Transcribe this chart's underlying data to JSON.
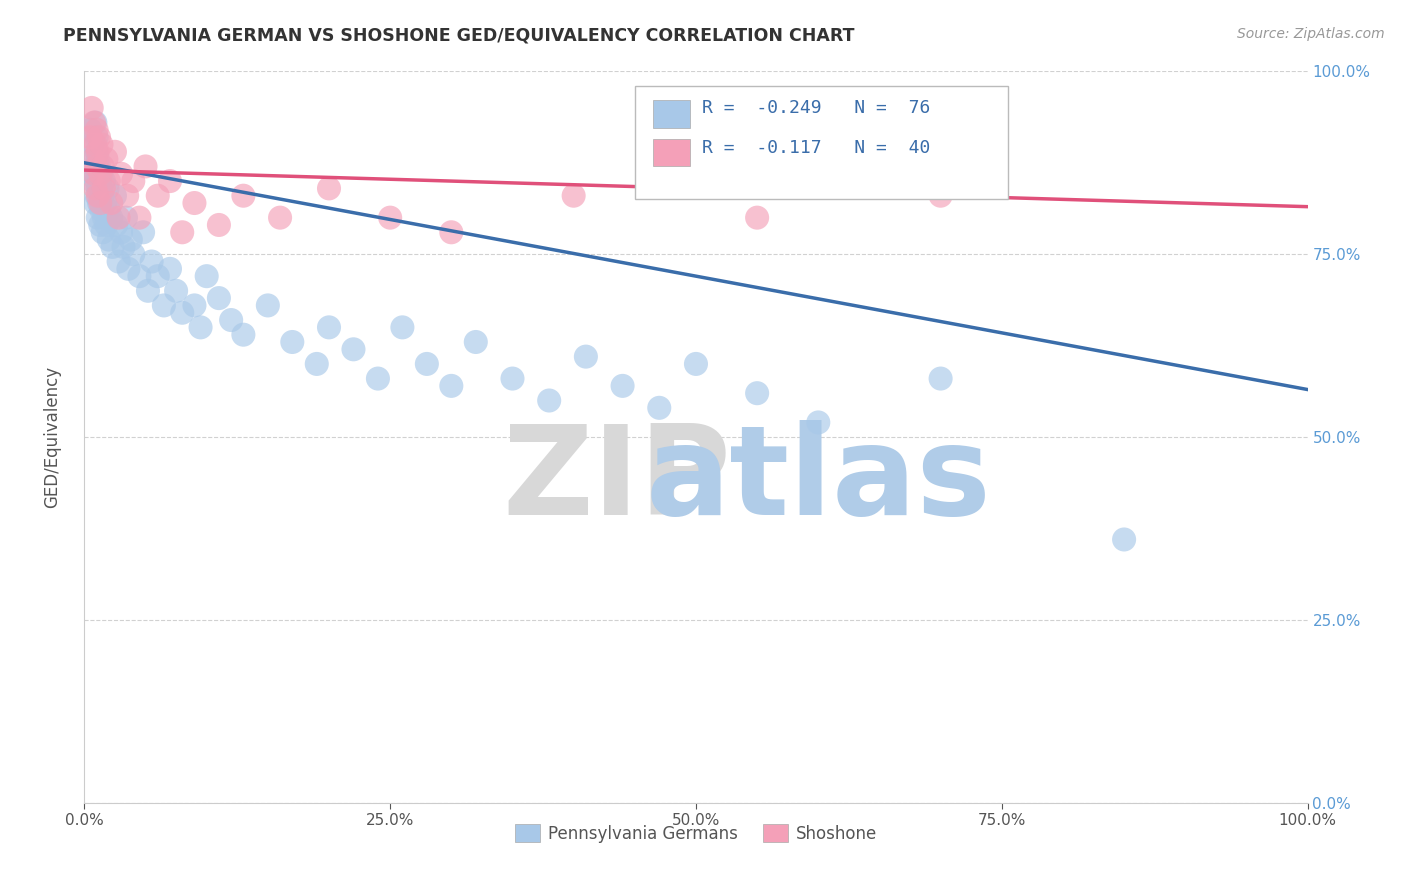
{
  "title": "PENNSYLVANIA GERMAN VS SHOSHONE GED/EQUIVALENCY CORRELATION CHART",
  "source_text": "Source: ZipAtlas.com",
  "ylabel": "GED/Equivalency",
  "xlabel": "",
  "xlim": [
    0.0,
    1.0
  ],
  "ylim": [
    0.0,
    1.0
  ],
  "blue_R": -0.249,
  "blue_N": 76,
  "pink_R": -0.117,
  "pink_N": 40,
  "blue_color": "#A8C8E8",
  "pink_color": "#F4A0B8",
  "blue_line_color": "#3A6DAA",
  "pink_line_color": "#E0507A",
  "legend_blue_label": "Pennsylvania Germans",
  "legend_pink_label": "Shoshone",
  "blue_line_y0": 0.875,
  "blue_line_y1": 0.565,
  "pink_line_y0": 0.865,
  "pink_line_y1": 0.815,
  "blue_scatter_x": [
    0.005,
    0.007,
    0.007,
    0.008,
    0.008,
    0.009,
    0.009,
    0.009,
    0.01,
    0.01,
    0.01,
    0.01,
    0.011,
    0.011,
    0.011,
    0.012,
    0.012,
    0.013,
    0.013,
    0.014,
    0.014,
    0.015,
    0.015,
    0.016,
    0.016,
    0.017,
    0.018,
    0.019,
    0.02,
    0.02,
    0.022,
    0.023,
    0.025,
    0.026,
    0.028,
    0.03,
    0.032,
    0.034,
    0.036,
    0.038,
    0.04,
    0.045,
    0.048,
    0.052,
    0.055,
    0.06,
    0.065,
    0.07,
    0.075,
    0.08,
    0.09,
    0.095,
    0.1,
    0.11,
    0.12,
    0.13,
    0.15,
    0.17,
    0.19,
    0.2,
    0.22,
    0.24,
    0.26,
    0.28,
    0.3,
    0.32,
    0.35,
    0.38,
    0.41,
    0.44,
    0.47,
    0.5,
    0.55,
    0.6,
    0.7,
    0.85
  ],
  "blue_scatter_y": [
    0.92,
    0.88,
    0.85,
    0.9,
    0.86,
    0.93,
    0.87,
    0.82,
    0.89,
    0.85,
    0.91,
    0.83,
    0.88,
    0.84,
    0.8,
    0.87,
    0.82,
    0.85,
    0.79,
    0.86,
    0.81,
    0.83,
    0.78,
    0.85,
    0.8,
    0.82,
    0.79,
    0.84,
    0.77,
    0.81,
    0.8,
    0.76,
    0.83,
    0.79,
    0.74,
    0.78,
    0.76,
    0.8,
    0.73,
    0.77,
    0.75,
    0.72,
    0.78,
    0.7,
    0.74,
    0.72,
    0.68,
    0.73,
    0.7,
    0.67,
    0.68,
    0.65,
    0.72,
    0.69,
    0.66,
    0.64,
    0.68,
    0.63,
    0.6,
    0.65,
    0.62,
    0.58,
    0.65,
    0.6,
    0.57,
    0.63,
    0.58,
    0.55,
    0.61,
    0.57,
    0.54,
    0.6,
    0.56,
    0.52,
    0.58,
    0.36
  ],
  "pink_scatter_x": [
    0.005,
    0.006,
    0.007,
    0.008,
    0.008,
    0.009,
    0.009,
    0.01,
    0.01,
    0.011,
    0.011,
    0.012,
    0.013,
    0.013,
    0.014,
    0.015,
    0.016,
    0.018,
    0.02,
    0.022,
    0.025,
    0.028,
    0.03,
    0.035,
    0.04,
    0.045,
    0.05,
    0.06,
    0.07,
    0.08,
    0.09,
    0.11,
    0.13,
    0.16,
    0.2,
    0.25,
    0.3,
    0.4,
    0.55,
    0.7
  ],
  "pink_scatter_y": [
    0.91,
    0.95,
    0.88,
    0.93,
    0.86,
    0.9,
    0.84,
    0.92,
    0.87,
    0.89,
    0.83,
    0.91,
    0.86,
    0.82,
    0.9,
    0.87,
    0.84,
    0.88,
    0.85,
    0.82,
    0.89,
    0.8,
    0.86,
    0.83,
    0.85,
    0.8,
    0.87,
    0.83,
    0.85,
    0.78,
    0.82,
    0.79,
    0.83,
    0.8,
    0.84,
    0.8,
    0.78,
    0.83,
    0.8,
    0.83
  ],
  "ytick_labels_left": [],
  "ytick_labels_right": [
    "0.0%",
    "25.0%",
    "50.0%",
    "75.0%",
    "100.0%"
  ],
  "ytick_values": [
    0.0,
    0.25,
    0.5,
    0.75,
    1.0
  ],
  "xtick_labels": [
    "0.0%",
    "25.0%",
    "50.0%",
    "75.0%",
    "100.0%"
  ],
  "xtick_values": [
    0.0,
    0.25,
    0.5,
    0.75,
    1.0
  ],
  "grid_color": "#CCCCCC",
  "background_color": "#FFFFFF",
  "right_tick_color": "#5B9BD5",
  "watermark_zip_color": "#D8D8D8",
  "watermark_atlas_color": "#B0CCE8"
}
